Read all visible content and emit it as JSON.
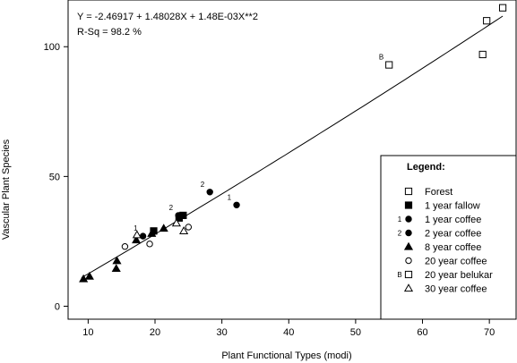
{
  "chart_data": {
    "type": "scatter",
    "title": "",
    "xlabel": "Plant Functional Types (modi)",
    "ylabel": "Vascular Plant Species",
    "xlim": [
      7,
      74
    ],
    "ylim": [
      -5,
      118
    ],
    "x_ticks": [
      10,
      20,
      30,
      40,
      50,
      60,
      70
    ],
    "y_ticks": [
      0,
      50,
      100
    ],
    "grid": false,
    "equation_text": "Y = -2.46917 + 1.48028X + 1.48E-03X**2",
    "rsq_text": "R-Sq = 98.2 %",
    "fit": {
      "type": "quadratic",
      "a": -2.46917,
      "b": 1.48028,
      "c": 0.00148,
      "x_range": [
        9,
        72
      ]
    },
    "legend": {
      "title": "Legend:",
      "placement": "bottom-right",
      "entries": [
        {
          "marker": "square-open",
          "prefix": "",
          "label": "Forest"
        },
        {
          "marker": "square-filled",
          "prefix": "",
          "label": "1 year fallow"
        },
        {
          "marker": "circle-filled",
          "prefix": "1",
          "label": "1 year coffee"
        },
        {
          "marker": "circle-filled",
          "prefix": "2",
          "label": "2 year coffee"
        },
        {
          "marker": "triangle-filled",
          "prefix": "",
          "label": "8 year coffee"
        },
        {
          "marker": "circle-open",
          "prefix": "",
          "label": "20 year coffee"
        },
        {
          "marker": "square-open",
          "prefix": "B",
          "label": "20 year belukar"
        },
        {
          "marker": "triangle-open",
          "prefix": "",
          "label": "30 year coffee"
        }
      ]
    },
    "series": [
      {
        "name": "Forest",
        "marker": "square-open",
        "points": [
          [
            69,
            97
          ],
          [
            69.6,
            110
          ],
          [
            72,
            115
          ]
        ]
      },
      {
        "name": "1 year fallow",
        "marker": "square-filled",
        "points": [
          [
            19.8,
            29
          ],
          [
            23.6,
            34
          ],
          [
            24.2,
            35
          ]
        ]
      },
      {
        "name": "1 year coffee",
        "marker": "circle-filled",
        "points": [
          [
            18.2,
            27
          ],
          [
            32.2,
            39
          ]
        ],
        "point_labels": [
          "1",
          "1"
        ]
      },
      {
        "name": "2 year coffee",
        "marker": "circle-filled",
        "points": [
          [
            23.5,
            35
          ],
          [
            28.2,
            44
          ]
        ],
        "point_labels": [
          "2",
          "2"
        ]
      },
      {
        "name": "8 year coffee",
        "marker": "triangle-filled",
        "points": [
          [
            9.3,
            10.5
          ],
          [
            10.2,
            11.5
          ],
          [
            14.2,
            14.5
          ],
          [
            14.3,
            17.5
          ],
          [
            17.2,
            25.5
          ],
          [
            19.5,
            28
          ],
          [
            21.3,
            30
          ]
        ]
      },
      {
        "name": "20 year coffee",
        "marker": "circle-open",
        "points": [
          [
            15.5,
            23
          ],
          [
            19.2,
            24
          ],
          [
            25,
            30.5
          ]
        ]
      },
      {
        "name": "20 year belukar",
        "marker": "square-open",
        "points": [
          [
            55,
            93
          ]
        ],
        "point_labels": [
          "B"
        ]
      },
      {
        "name": "30 year coffee",
        "marker": "triangle-open",
        "points": [
          [
            17.3,
            27.5
          ],
          [
            23.2,
            32
          ],
          [
            24.3,
            29
          ]
        ]
      }
    ]
  }
}
